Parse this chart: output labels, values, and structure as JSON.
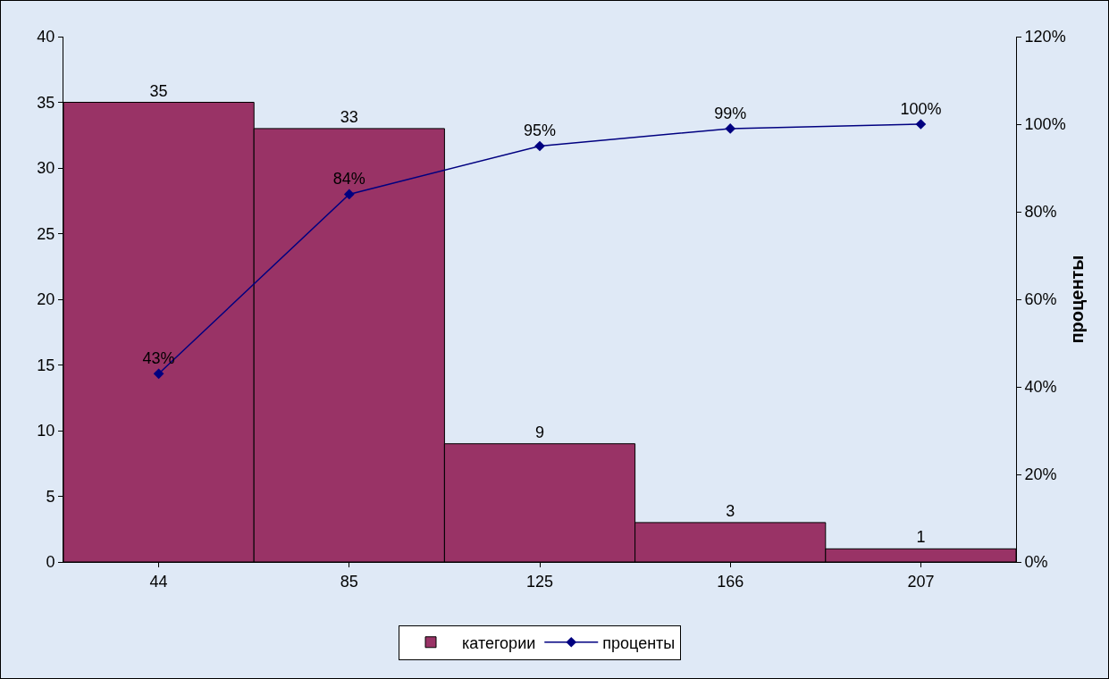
{
  "chart_data": {
    "type": "bar",
    "categories": [
      "44",
      "85",
      "125",
      "166",
      "207"
    ],
    "series": [
      {
        "name": "категории",
        "color": "#993366",
        "values": [
          35,
          33,
          9,
          3,
          1
        ]
      },
      {
        "name": "проценты",
        "type": "line",
        "axis": "y2",
        "color": "#000080",
        "marker": "diamond",
        "values": [
          43,
          84,
          95,
          99,
          100
        ],
        "value_labels": [
          "43%",
          "84%",
          "95%",
          "99%",
          "100%"
        ]
      }
    ],
    "data_labels": true,
    "ylim": [
      0,
      40
    ],
    "yticks": [
      0,
      5,
      10,
      15,
      20,
      25,
      30,
      35,
      40
    ],
    "y2lim": [
      0,
      120
    ],
    "y2ticks": [
      {
        "value": 0,
        "label": "0%"
      },
      {
        "value": 20,
        "label": "20%"
      },
      {
        "value": 40,
        "label": "40%"
      },
      {
        "value": 60,
        "label": "60%"
      },
      {
        "value": 80,
        "label": "80%"
      },
      {
        "value": 100,
        "label": "100%"
      },
      {
        "value": 120,
        "label": "120%"
      }
    ],
    "y2label": "проценты",
    "grid": false,
    "legend": "bottom"
  }
}
